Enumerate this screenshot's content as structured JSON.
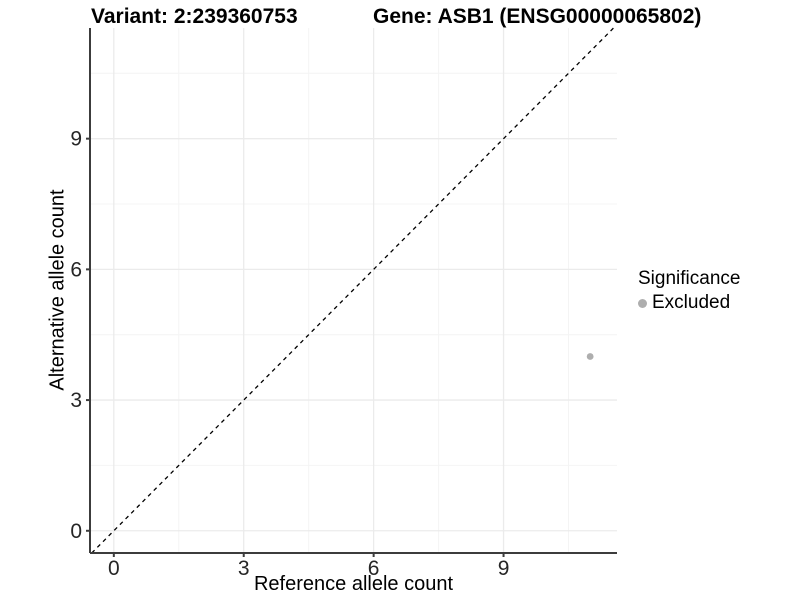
{
  "chart_data": {
    "type": "scatter",
    "title_left": "Variant: 2:239360753",
    "title_right": "Gene: ASB1 (ENSG00000065802)",
    "xlabel": "Reference allele count",
    "ylabel": "Alternative allele count",
    "xlim": [
      -0.55,
      11.62
    ],
    "ylim": [
      -0.51,
      11.54
    ],
    "x_tick_values": [
      0,
      3,
      6,
      9
    ],
    "x_tick_labels": [
      "0",
      "3",
      "6",
      "9"
    ],
    "y_tick_values": [
      0,
      3,
      6,
      9
    ],
    "y_tick_labels": [
      "0",
      "3",
      "6",
      "9"
    ],
    "x_minor_gridlines": [
      1.5,
      4.5,
      7.5,
      10.5
    ],
    "y_minor_gridlines": [
      1.5,
      4.5,
      7.5,
      10.5
    ],
    "grid": "major+minor",
    "identity_line": {
      "equation": "y = x",
      "style": "dashed",
      "color": "#000000"
    },
    "series": [
      {
        "name": "Excluded",
        "color": "#aeaeae",
        "points": [
          [
            11,
            4
          ]
        ]
      }
    ],
    "legend": {
      "title": "Significance",
      "position": "right",
      "items": [
        {
          "label": "Excluded",
          "color": "#aeaeae",
          "marker": "dot-icon"
        }
      ]
    },
    "colors": {
      "background": "#ffffff",
      "grid_major": "#ebebeb",
      "grid_minor": "#f4f4f4",
      "axis_line": "#3c3c3c",
      "tick_label": "#262626"
    }
  }
}
